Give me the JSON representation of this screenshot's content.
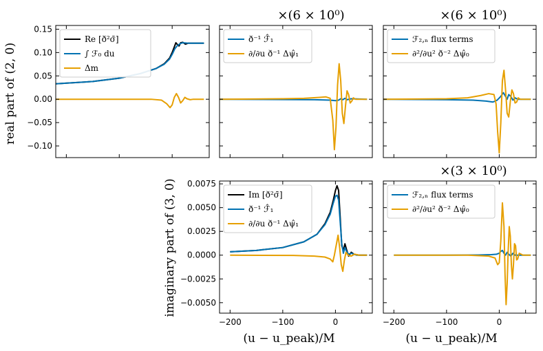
{
  "figure": {
    "colors": {
      "black": "#000000",
      "blue": "#0072b2",
      "orange": "#e69f00"
    },
    "row_labels": [
      "real part of (2, 0)",
      "imaginary part of (3, 0)"
    ],
    "x_label": "(u − u_peak)/M",
    "scale_labels": {
      "p1": "×(6 × 10⁰)",
      "p2": "×(6 × 10⁰)",
      "p4": "×(3 × 10⁰)"
    }
  },
  "chart_data": [
    {
      "id": "p0",
      "type": "line",
      "xlim": [
        -220,
        70
      ],
      "ylim": [
        -0.125,
        0.158
      ],
      "xticks": [
        -200,
        -100,
        0
      ],
      "yticks": [
        -0.1,
        -0.05,
        0.0,
        0.05,
        0.1,
        0.15
      ],
      "ytick_labels": [
        "−0.10",
        "−0.05",
        "0.00",
        "0.05",
        "0.10",
        "0.15"
      ],
      "legend": [
        "Re [ð²σ̄]",
        "∫ ℱ₀ du",
        "Δm"
      ],
      "series": [
        {
          "name": "Re [ð²σ̄]",
          "color": "black",
          "points": [
            [
              -220,
              0.033
            ],
            [
              -150,
              0.038
            ],
            [
              -100,
              0.045
            ],
            [
              -60,
              0.055
            ],
            [
              -30,
              0.066
            ],
            [
              -15,
              0.076
            ],
            [
              -5,
              0.088
            ],
            [
              0,
              0.1
            ],
            [
              4,
              0.112
            ],
            [
              7,
              0.121
            ],
            [
              10,
              0.117
            ],
            [
              13,
              0.114
            ],
            [
              16,
              0.121
            ],
            [
              20,
              0.122
            ],
            [
              25,
              0.118
            ],
            [
              30,
              0.12
            ],
            [
              40,
              0.12
            ],
            [
              60,
              0.12
            ]
          ]
        },
        {
          "name": "∫ ℱ₀ du",
          "color": "blue",
          "points": [
            [
              -220,
              0.033
            ],
            [
              -150,
              0.038
            ],
            [
              -100,
              0.045
            ],
            [
              -60,
              0.055
            ],
            [
              -30,
              0.066
            ],
            [
              -15,
              0.075
            ],
            [
              -5,
              0.086
            ],
            [
              0,
              0.096
            ],
            [
              5,
              0.108
            ],
            [
              10,
              0.115
            ],
            [
              15,
              0.119
            ],
            [
              20,
              0.121
            ],
            [
              30,
              0.12
            ],
            [
              40,
              0.12
            ],
            [
              60,
              0.12
            ]
          ]
        },
        {
          "name": "Δm",
          "color": "orange",
          "points": [
            [
              -220,
              0
            ],
            [
              -40,
              0
            ],
            [
              -20,
              -0.002
            ],
            [
              -10,
              -0.01
            ],
            [
              -4,
              -0.018
            ],
            [
              0,
              -0.012
            ],
            [
              4,
              0.004
            ],
            [
              8,
              0.012
            ],
            [
              12,
              0.004
            ],
            [
              16,
              -0.008
            ],
            [
              20,
              -0.003
            ],
            [
              24,
              0.004
            ],
            [
              28,
              0.001
            ],
            [
              34,
              -0.001
            ],
            [
              40,
              0
            ],
            [
              60,
              0
            ]
          ]
        }
      ]
    },
    {
      "id": "p1",
      "type": "line",
      "xlim": [
        -220,
        70
      ],
      "ylim": [
        -0.125,
        0.158
      ],
      "xticks": [
        -200,
        -100,
        0
      ],
      "yticks": [
        -0.1,
        -0.05,
        0.0,
        0.05,
        0.1,
        0.15
      ],
      "legend": [
        "ð⁻¹ ℱ̂₁",
        "∂/∂u ð⁻¹ Δψ̂₁"
      ],
      "series": [
        {
          "name": "ð⁻¹ ℱ̂₁",
          "color": "blue",
          "points": [
            [
              -220,
              0
            ],
            [
              -40,
              -0.001
            ],
            [
              -10,
              -0.002
            ],
            [
              0,
              -0.003
            ],
            [
              6,
              -0.002
            ],
            [
              10,
              0.001
            ],
            [
              14,
              -0.001
            ],
            [
              18,
              0.002
            ],
            [
              22,
              -0.001
            ],
            [
              30,
              0.001
            ],
            [
              60,
              0
            ]
          ]
        },
        {
          "name": "∂/∂u ð⁻¹ Δψ̂₁",
          "color": "orange",
          "points": [
            [
              -220,
              0
            ],
            [
              -100,
              0.001
            ],
            [
              -60,
              0.002
            ],
            [
              -30,
              0.004
            ],
            [
              -18,
              0.005
            ],
            [
              -10,
              0.002
            ],
            [
              -5,
              -0.045
            ],
            [
              -2,
              -0.108
            ],
            [
              1,
              -0.06
            ],
            [
              4,
              0.03
            ],
            [
              7,
              0.076
            ],
            [
              10,
              0.04
            ],
            [
              13,
              -0.03
            ],
            [
              16,
              -0.052
            ],
            [
              19,
              -0.015
            ],
            [
              22,
              0.018
            ],
            [
              25,
              0.01
            ],
            [
              28,
              -0.008
            ],
            [
              31,
              -0.004
            ],
            [
              34,
              0.003
            ],
            [
              38,
              0
            ],
            [
              60,
              0
            ]
          ]
        }
      ]
    },
    {
      "id": "p2",
      "type": "line",
      "xlim": [
        -220,
        70
      ],
      "ylim": [
        -0.125,
        0.158
      ],
      "xticks": [
        -200,
        -100,
        0
      ],
      "yticks": [
        -0.1,
        -0.05,
        0.0,
        0.05,
        0.1,
        0.15
      ],
      "legend": [
        "ℱ₂,ₙ flux terms",
        "∂²/∂u² ð⁻² Δψ̂₀"
      ],
      "series": [
        {
          "name": "ℱ₂,ₙ flux terms",
          "color": "blue",
          "points": [
            [
              -220,
              0
            ],
            [
              -100,
              -0.001
            ],
            [
              -50,
              -0.002
            ],
            [
              -25,
              -0.004
            ],
            [
              -12,
              -0.006
            ],
            [
              -4,
              -0.002
            ],
            [
              2,
              0.005
            ],
            [
              8,
              0.014
            ],
            [
              12,
              0.006
            ],
            [
              15,
              0.0
            ],
            [
              18,
              0.01
            ],
            [
              22,
              0.006
            ],
            [
              26,
              -0.002
            ],
            [
              30,
              0.003
            ],
            [
              35,
              0
            ],
            [
              60,
              0
            ]
          ]
        },
        {
          "name": "∂²/∂u² ð⁻² Δψ̂₀",
          "color": "orange",
          "points": [
            [
              -220,
              0
            ],
            [
              -100,
              0.001
            ],
            [
              -60,
              0.003
            ],
            [
              -35,
              0.008
            ],
            [
              -20,
              0.012
            ],
            [
              -10,
              0.01
            ],
            [
              -6,
              -0.01
            ],
            [
              -3,
              -0.07
            ],
            [
              0,
              -0.115
            ],
            [
              3,
              -0.05
            ],
            [
              6,
              0.04
            ],
            [
              9,
              0.062
            ],
            [
              12,
              0.02
            ],
            [
              15,
              -0.03
            ],
            [
              18,
              -0.038
            ],
            [
              21,
              -0.005
            ],
            [
              24,
              0.02
            ],
            [
              27,
              0.012
            ],
            [
              30,
              -0.008
            ],
            [
              33,
              -0.006
            ],
            [
              36,
              0.003
            ],
            [
              40,
              0
            ],
            [
              60,
              0
            ]
          ]
        }
      ]
    },
    {
      "id": "p3",
      "type": "line",
      "xlim": [
        -220,
        70
      ],
      "ylim": [
        -0.0061,
        0.0078
      ],
      "xticks": [
        -200,
        -100,
        0,
        50
      ],
      "xtick_labels": [
        "−200",
        "−100",
        "0",
        ""
      ],
      "yticks": [
        -0.005,
        -0.0025,
        0.0,
        0.0025,
        0.005,
        0.0075
      ],
      "ytick_labels": [
        "−0.0050",
        "−0.0025",
        "0.0000",
        "0.0025",
        "0.0050",
        "0.0075"
      ],
      "legend": [
        "Im [ð²σ̄]",
        "ð⁻¹ ℱ̂₁",
        "∂/∂u ð⁻¹ Δψ̂₁"
      ],
      "series": [
        {
          "name": "Im [ð²σ̄]",
          "color": "black",
          "points": [
            [
              -200,
              0.00035
            ],
            [
              -150,
              0.0005
            ],
            [
              -100,
              0.0008
            ],
            [
              -60,
              0.0014
            ],
            [
              -35,
              0.0022
            ],
            [
              -20,
              0.0033
            ],
            [
              -10,
              0.0045
            ],
            [
              -4,
              0.0058
            ],
            [
              0,
              0.0068
            ],
            [
              3,
              0.0073
            ],
            [
              6,
              0.0068
            ],
            [
              9,
              0.004
            ],
            [
              12,
              0.001
            ],
            [
              15,
              0.0005
            ],
            [
              18,
              0.0012
            ],
            [
              21,
              0.0006
            ],
            [
              25,
              -0.0001
            ],
            [
              30,
              0.0003
            ],
            [
              35,
              0.0001
            ],
            [
              45,
              0
            ],
            [
              60,
              0
            ]
          ]
        },
        {
          "name": "ð⁻¹ ℱ̂₁",
          "color": "blue",
          "points": [
            [
              -200,
              0.00035
            ],
            [
              -150,
              0.0005
            ],
            [
              -100,
              0.0008
            ],
            [
              -60,
              0.0014
            ],
            [
              -35,
              0.0022
            ],
            [
              -20,
              0.0032
            ],
            [
              -10,
              0.0043
            ],
            [
              -4,
              0.0055
            ],
            [
              0,
              0.0062
            ],
            [
              3,
              0.0063
            ],
            [
              6,
              0.0058
            ],
            [
              9,
              0.0035
            ],
            [
              12,
              0.0012
            ],
            [
              15,
              0.0002
            ],
            [
              18,
              0.0008
            ],
            [
              21,
              0.0004
            ],
            [
              25,
              0.0001
            ],
            [
              30,
              0.0002
            ],
            [
              40,
              0
            ],
            [
              60,
              0
            ]
          ]
        },
        {
          "name": "∂/∂u ð⁻¹ Δψ̂₁",
          "color": "orange",
          "points": [
            [
              -200,
              0
            ],
            [
              -80,
              -3e-05
            ],
            [
              -40,
              -0.0001
            ],
            [
              -20,
              -0.0002
            ],
            [
              -10,
              -0.0004
            ],
            [
              -5,
              -0.0007
            ],
            [
              -2,
              0.0
            ],
            [
              2,
              0.0012
            ],
            [
              5,
              0.0021
            ],
            [
              8,
              0.0008
            ],
            [
              11,
              -0.001
            ],
            [
              14,
              -0.0017
            ],
            [
              17,
              -0.0005
            ],
            [
              20,
              0.0003
            ],
            [
              24,
              0.0
            ],
            [
              30,
              -0.0001
            ],
            [
              36,
              0.0001
            ],
            [
              45,
              0
            ],
            [
              60,
              0
            ]
          ]
        }
      ]
    },
    {
      "id": "p4",
      "type": "line",
      "xlim": [
        -220,
        70
      ],
      "ylim": [
        -0.0061,
        0.0078
      ],
      "xticks": [
        -200,
        -100,
        0,
        50
      ],
      "xtick_labels": [
        "−200",
        "−100",
        "0",
        ""
      ],
      "yticks": [
        -0.005,
        -0.0025,
        0.0,
        0.0025,
        0.005,
        0.0075
      ],
      "legend": [
        "ℱ₂,ₙ flux terms",
        "∂²/∂u² ð⁻² Δψ̂₀"
      ],
      "series": [
        {
          "name": "ℱ₂,ₙ flux terms",
          "color": "blue",
          "points": [
            [
              -200,
              0
            ],
            [
              -100,
              0
            ],
            [
              -40,
              2e-05
            ],
            [
              -15,
              5e-05
            ],
            [
              -5,
              0.0001
            ],
            [
              0,
              0.0002
            ],
            [
              3,
              0.0004
            ],
            [
              6,
              0.0005
            ],
            [
              9,
              0.0002
            ],
            [
              12,
              0.0
            ],
            [
              15,
              0.0003
            ],
            [
              18,
              0.0001
            ],
            [
              22,
              -0.0001
            ],
            [
              26,
              0.0002
            ],
            [
              30,
              0
            ],
            [
              60,
              0
            ]
          ]
        },
        {
          "name": "∂²/∂u² ð⁻² Δψ̂₀",
          "color": "orange",
          "points": [
            [
              -200,
              0
            ],
            [
              -60,
              0
            ],
            [
              -20,
              -0.0001
            ],
            [
              -8,
              -0.0003
            ],
            [
              -3,
              -0.001
            ],
            [
              0,
              -0.0008
            ],
            [
              3,
              0.0015
            ],
            [
              6,
              0.0055
            ],
            [
              9,
              0.003
            ],
            [
              11,
              -0.002
            ],
            [
              13,
              -0.0052
            ],
            [
              15,
              -0.003
            ],
            [
              17,
              0.0005
            ],
            [
              19,
              0.003
            ],
            [
              21,
              0.002
            ],
            [
              23,
              -0.001
            ],
            [
              25,
              -0.0025
            ],
            [
              27,
              -0.001
            ],
            [
              29,
              0.0012
            ],
            [
              31,
              0.001
            ],
            [
              33,
              -0.0005
            ],
            [
              35,
              -0.0004
            ],
            [
              38,
              0.0002
            ],
            [
              45,
              0
            ],
            [
              60,
              0
            ]
          ]
        }
      ]
    }
  ]
}
